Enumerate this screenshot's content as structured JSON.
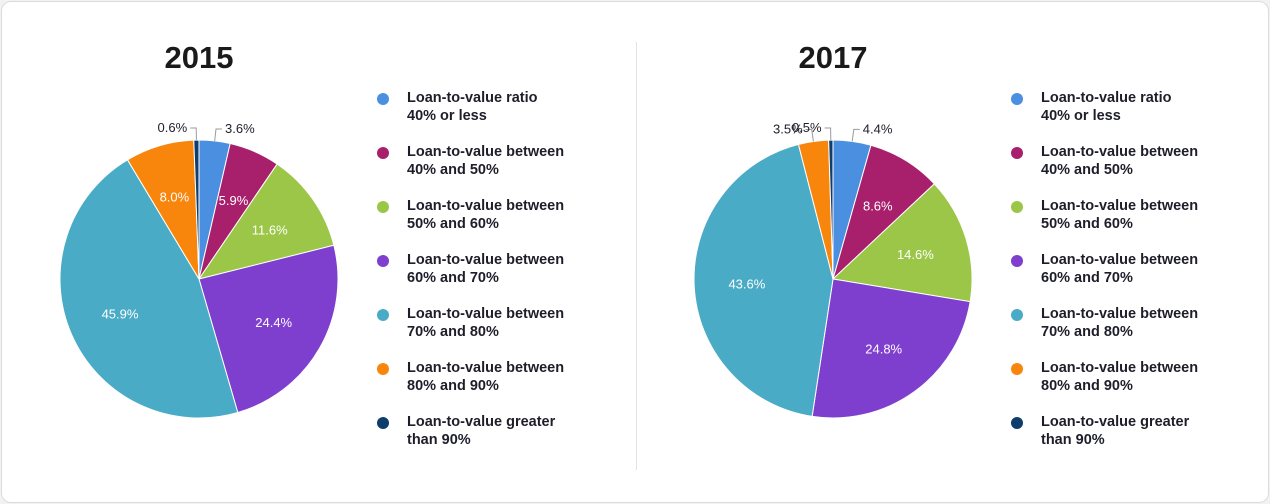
{
  "legend": [
    {
      "line1": "Loan-to-value ratio",
      "line2": "40% or less",
      "color": "#4a8fe0"
    },
    {
      "line1": "Loan-to-value between",
      "line2": "40% and 50%",
      "color": "#a8206c"
    },
    {
      "line1": "Loan-to-value between",
      "line2": "50% and 60%",
      "color": "#9bc648"
    },
    {
      "line1": "Loan-to-value between",
      "line2": "60% and 70%",
      "color": "#7e3fce"
    },
    {
      "line1": "Loan-to-value between",
      "line2": "70% and 80%",
      "color": "#4aabc6"
    },
    {
      "line1": "Loan-to-value between",
      "line2": "80% and 90%",
      "color": "#f9860c"
    },
    {
      "line1": "Loan-to-value greater",
      "line2": "than 90%",
      "color": "#0f3e6c"
    }
  ],
  "chart_data": [
    {
      "type": "pie",
      "title": "2015",
      "categories": [
        "Loan-to-value ratio 40% or less",
        "Loan-to-value between 40% and 50%",
        "Loan-to-value between 50% and 60%",
        "Loan-to-value between 60% and 70%",
        "Loan-to-value between 70% and 80%",
        "Loan-to-value between 80% and 90%",
        "Loan-to-value greater than 90%"
      ],
      "values": [
        3.6,
        5.9,
        11.6,
        24.4,
        45.9,
        8.0,
        0.6
      ],
      "labels": [
        "3.6%",
        "5.9%",
        "11.6%",
        "24.4%",
        "45.9%",
        "8.0%",
        "0.6%"
      ],
      "colors": [
        "#4a8fe0",
        "#a8206c",
        "#9bc648",
        "#7e3fce",
        "#4aabc6",
        "#f9860c",
        "#0f3e6c"
      ]
    },
    {
      "type": "pie",
      "title": "2017",
      "categories": [
        "Loan-to-value ratio 40% or less",
        "Loan-to-value between 40% and 50%",
        "Loan-to-value between 50% and 60%",
        "Loan-to-value between 60% and 70%",
        "Loan-to-value between 70% and 80%",
        "Loan-to-value between 80% and 90%",
        "Loan-to-value greater than 90%"
      ],
      "values": [
        4.4,
        8.6,
        14.6,
        24.8,
        43.6,
        3.5,
        0.5
      ],
      "labels": [
        "4.4%",
        "8.6%",
        "14.6%",
        "24.8%",
        "43.6%",
        "3.5%",
        "0.5%"
      ],
      "colors": [
        "#4a8fe0",
        "#a8206c",
        "#9bc648",
        "#7e3fce",
        "#4aabc6",
        "#f9860c",
        "#0f3e6c"
      ]
    }
  ]
}
